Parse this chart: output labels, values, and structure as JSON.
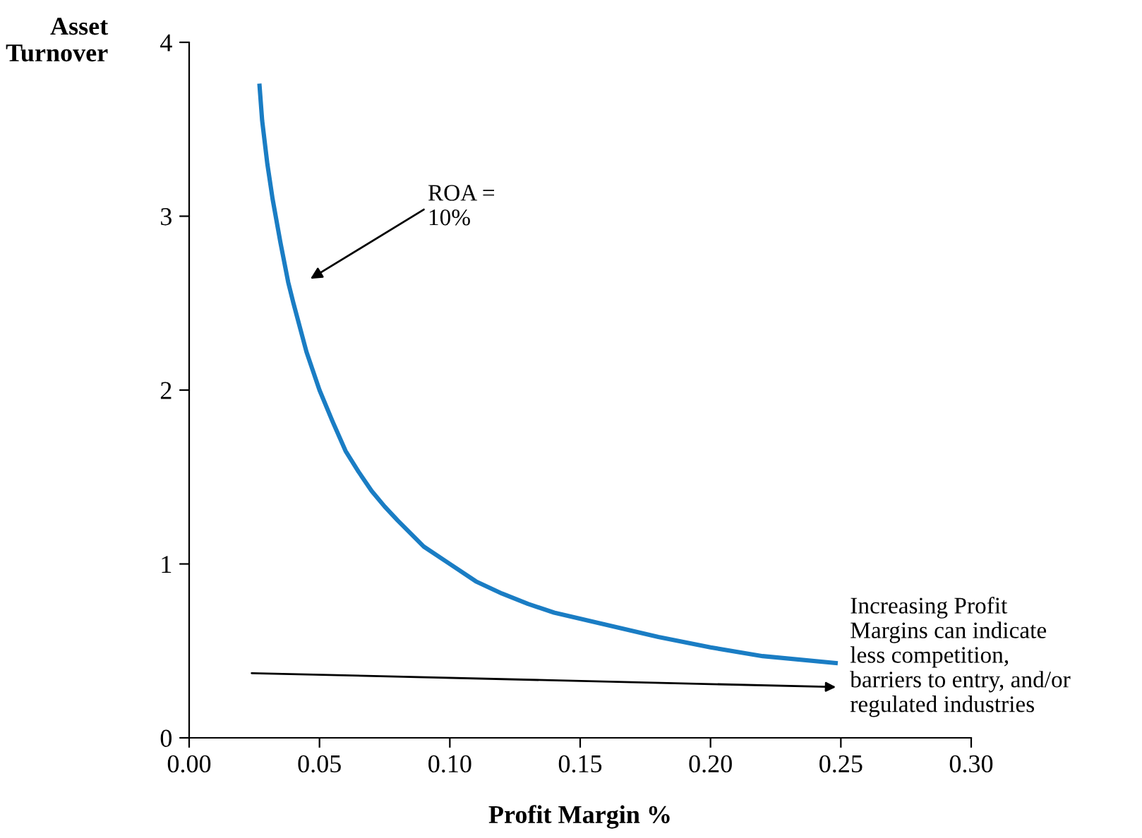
{
  "chart_data": {
    "type": "line",
    "xlabel": "Profit Margin %",
    "ylabel": "Asset\nTurnover",
    "series": [
      {
        "color": "#1a7dc4",
        "x": [
          0.027,
          0.028,
          0.03,
          0.032,
          0.035,
          0.038,
          0.04,
          0.045,
          0.05,
          0.055,
          0.06,
          0.065,
          0.07,
          0.075,
          0.08,
          0.09,
          0.1,
          0.11,
          0.12,
          0.13,
          0.14,
          0.16,
          0.18,
          0.2,
          0.22,
          0.248
        ],
        "values": [
          3.75,
          3.55,
          3.3,
          3.1,
          2.85,
          2.62,
          2.5,
          2.22,
          2.0,
          1.82,
          1.65,
          1.53,
          1.42,
          1.33,
          1.25,
          1.1,
          1.0,
          0.9,
          0.83,
          0.77,
          0.72,
          0.65,
          0.58,
          0.52,
          0.47,
          0.43
        ]
      }
    ],
    "xlim": [
      0,
      0.3
    ],
    "ylim": [
      0,
      4
    ],
    "xticks": [
      {
        "value": 0,
        "label": "0.00"
      },
      {
        "value": 0.05,
        "label": "0.05"
      },
      {
        "value": 0.1,
        "label": "0.10"
      },
      {
        "value": 0.15,
        "label": "0.15"
      },
      {
        "value": 0.2,
        "label": "0.20"
      },
      {
        "value": 0.25,
        "label": "0.25"
      },
      {
        "value": 0.3,
        "label": "0.30"
      }
    ],
    "yticks": [
      0,
      1,
      2,
      3,
      4
    ],
    "grid": false,
    "legend": false,
    "marker": "none",
    "line_style": "solid",
    "annotations": [
      "ROA =\n10%",
      "Increasing Profit\nMargins can indicate\nless competition,\nbarriers to entry, and/or\nregulated industries"
    ]
  }
}
